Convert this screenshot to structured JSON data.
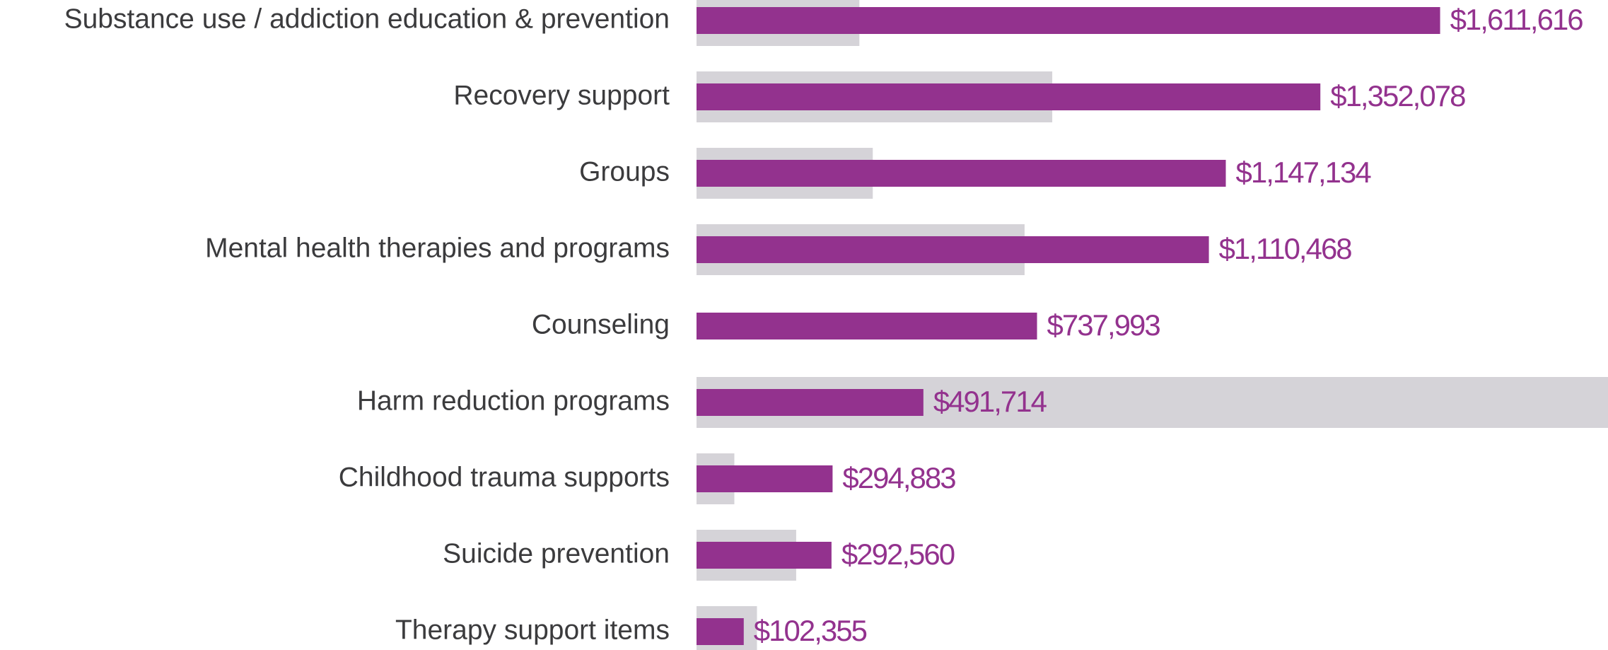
{
  "chart_data": {
    "type": "bar",
    "orientation": "horizontal",
    "categories": [
      "Substance use / addiction education & prevention",
      "Recovery support",
      "Groups",
      "Mental health therapies and programs",
      "Counseling",
      "Harm reduction programs",
      "Childhood trauma supports",
      "Suicide prevention",
      "Therapy support items"
    ],
    "series": [
      {
        "color": "#d5d3d8",
        "values": [
          353000,
          771000,
          382000,
          711000,
          0,
          2000000,
          82000,
          216000,
          131000
        ]
      },
      {
        "color": "#93328e",
        "values": [
          1611616,
          1352078,
          1147134,
          1110468,
          737993,
          491714,
          294883,
          292560,
          102355
        ],
        "value_labels": [
          "$1,611,616",
          "$1,352,078",
          "$1,147,134",
          "$1,110,468",
          "$737,993",
          "$491,714",
          "$294,883",
          "$292,560",
          "$102,355"
        ]
      }
    ],
    "xlim": [
      0,
      2000000
    ]
  }
}
